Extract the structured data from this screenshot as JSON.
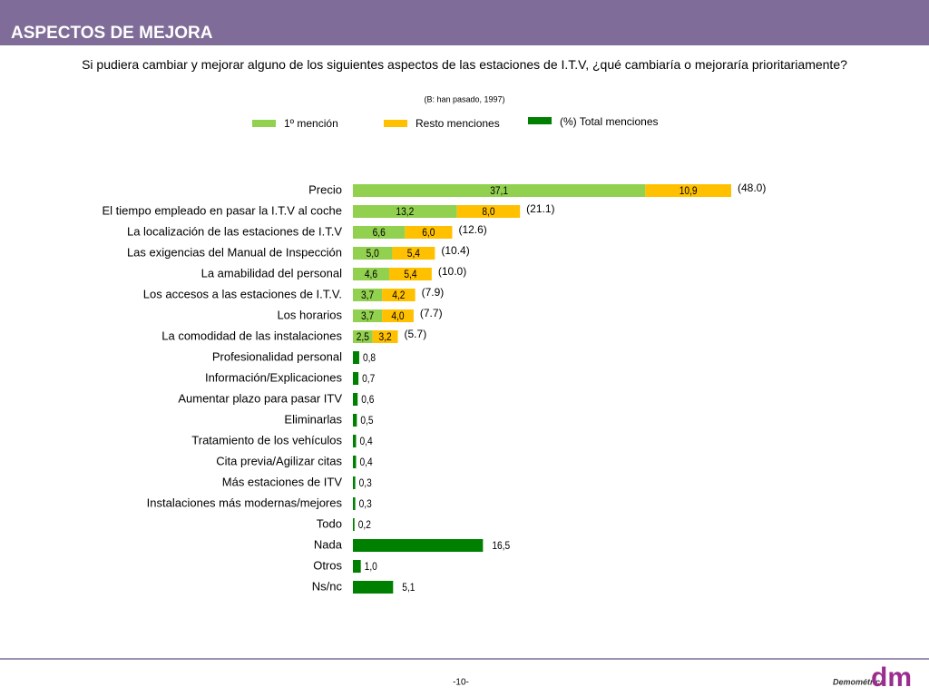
{
  "header": {
    "title": "ASPECTOS DE MEJORA"
  },
  "chart_data": {
    "type": "stacked_barh",
    "title": "Si pudiera cambiar y mejorar alguno de los siguientes aspectos de las estaciones de I.T.V, ¿qué cambiaría o mejoraría prioritariamente?",
    "subtitle": "(B: han pasado, 1997)",
    "categories": [
      "Precio",
      "El tiempo empleado en pasar la I.T.V al coche",
      "La localización de las estaciones de I.T.V",
      "Las exigencias del Manual de Inspección",
      "La amabilidad del personal",
      "Los accesos a las estaciones de I.T.V.",
      "Los horarios",
      "La comodidad de las instalaciones",
      "Profesionalidad personal",
      "Información/Explicaciones",
      "Aumentar plazo para pasar ITV",
      "Eliminarlas",
      "Tratamiento de los vehículos",
      "Cita previa/Agilizar citas",
      "Más estaciones de ITV",
      "Instalaciones más modernas/mejores",
      "Todo",
      "Nada",
      "Otros",
      "Ns/nc"
    ],
    "series": [
      {
        "name": "1º mención",
        "color": "#92d050",
        "values": [
          37.1,
          13.2,
          6.6,
          5.0,
          4.6,
          3.7,
          3.7,
          2.5,
          null,
          null,
          null,
          null,
          null,
          null,
          null,
          null,
          null,
          null,
          null,
          null
        ],
        "value_labels": [
          "37,1",
          "13,2",
          "6,6",
          "5,0",
          "4,6",
          "3,7",
          "3,7",
          "2,5",
          null,
          null,
          null,
          null,
          null,
          null,
          null,
          null,
          null,
          null,
          null,
          null
        ]
      },
      {
        "name": "Resto menciones",
        "color": "#ffc000",
        "values": [
          10.9,
          8.0,
          6.0,
          5.4,
          5.4,
          4.2,
          4.0,
          3.2,
          null,
          null,
          null,
          null,
          null,
          null,
          null,
          null,
          null,
          null,
          null,
          null
        ],
        "value_labels": [
          "10,9",
          "8,0",
          "6,0",
          "5,4",
          "5,4",
          "4,2",
          "4,0",
          "3,2",
          null,
          null,
          null,
          null,
          null,
          null,
          null,
          null,
          null,
          null,
          null,
          null
        ]
      },
      {
        "name": "(%) Total menciones",
        "color": "#008000",
        "values": [
          48.0,
          21.1,
          12.6,
          10.4,
          10.0,
          7.9,
          7.7,
          5.7,
          0.8,
          0.7,
          0.6,
          0.5,
          0.4,
          0.4,
          0.3,
          0.3,
          0.2,
          16.5,
          1.0,
          5.1
        ],
        "value_labels": [
          "(48.0)",
          "(21.1)",
          "(12.6)",
          "(10.4)",
          "(10.0)",
          "(7.9)",
          "(7.7)",
          "(5.7)",
          "0,8",
          "0,7",
          "0,6",
          "0,5",
          "0,4",
          "0,4",
          "0,3",
          "0,3",
          "0,2",
          "16,5",
          "1,0",
          "5,1"
        ]
      }
    ]
  },
  "footer": {
    "page": "-10-",
    "logo": "Demométrica",
    "logo_mark": "dm"
  }
}
